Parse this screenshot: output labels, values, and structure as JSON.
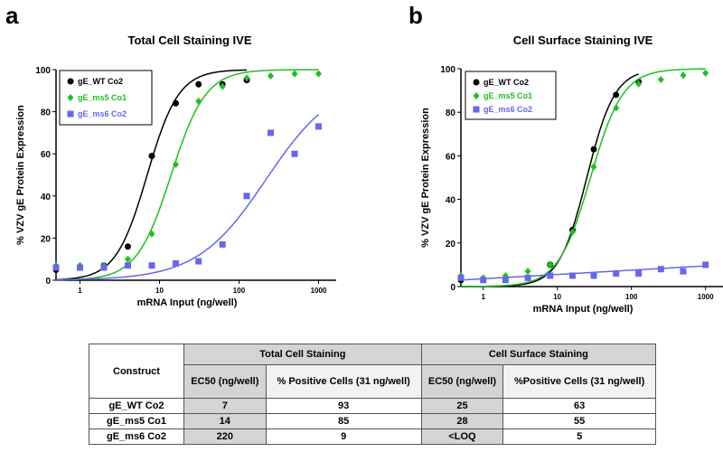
{
  "panels": {
    "a": "a",
    "b": "b"
  },
  "chart_data": [
    {
      "type": "scatter",
      "title": "Total Cell Staining IVE",
      "xlabel": "mRNA Input (ng/well)",
      "ylabel": "% VZV gE Protein Expression",
      "xscale": "log",
      "xlim": [
        0.5,
        1400
      ],
      "ylim": [
        0,
        100
      ],
      "xticks": [
        "1",
        "10",
        "100",
        "1000"
      ],
      "yticks": [
        "0",
        "20",
        "40",
        "60",
        "80",
        "100"
      ],
      "legend": "top-left",
      "series": [
        {
          "name": "gE_WT Co2",
          "color": "#000000",
          "marker": "circle",
          "x": [
            0.5,
            1,
            2,
            4,
            8,
            16,
            31,
            62,
            125
          ],
          "y": [
            5,
            6,
            7,
            16,
            59,
            84,
            93,
            93,
            95
          ],
          "fit": {
            "ec50": 7,
            "hill": 2.2,
            "top": 100,
            "bottom": 0,
            "xmax": 125
          }
        },
        {
          "name": "gE_ms5  Co1",
          "color": "#1fbf1f",
          "marker": "diamond",
          "x": [
            0.5,
            1,
            2,
            4,
            8,
            16,
            31,
            62,
            125,
            250,
            500,
            1000
          ],
          "y": [
            7,
            7,
            7,
            10,
            22,
            55,
            85,
            92,
            96,
            97,
            98,
            98
          ],
          "fit": {
            "ec50": 14,
            "hill": 2.0,
            "top": 100,
            "bottom": 0,
            "xmax": 1000
          }
        },
        {
          "name": "gE_ms6 Co2",
          "color": "#6666ee",
          "marker": "square",
          "x": [
            0.5,
            1,
            2,
            4,
            8,
            16,
            31,
            62,
            125,
            250,
            500,
            1000
          ],
          "y": [
            6,
            6,
            6,
            7,
            7,
            8,
            9,
            17,
            40,
            70,
            60,
            73
          ],
          "fit": {
            "ec50": 220,
            "hill": 1.0,
            "top": 96,
            "bottom": 0,
            "xmax": 1000
          }
        }
      ]
    },
    {
      "type": "scatter",
      "title": "Cell Surface Staining IVE",
      "xlabel": "mRNA Input (ng/well)",
      "ylabel": "% VZV gE Protein Expression",
      "xscale": "log",
      "xlim": [
        0.5,
        1400
      ],
      "ylim": [
        0,
        100
      ],
      "xticks": [
        "1",
        "10",
        "100",
        "1000"
      ],
      "yticks": [
        "0",
        "20",
        "40",
        "60",
        "80",
        "100"
      ],
      "legend": "top-left",
      "series": [
        {
          "name": "gE_WT Co2",
          "color": "#000000",
          "marker": "circle",
          "x": [
            0.5,
            8,
            16,
            31,
            62,
            125
          ],
          "y": [
            3,
            10,
            26,
            63,
            88,
            94
          ],
          "fit": {
            "ec50": 25,
            "hill": 2.3,
            "top": 100,
            "bottom": 0,
            "xmax": 125
          }
        },
        {
          "name": "gE_ms5  Co1",
          "color": "#1fbf1f",
          "marker": "diamond",
          "x": [
            0.5,
            1,
            2,
            4,
            8,
            16,
            31,
            62,
            125,
            250,
            500,
            1000
          ],
          "y": [
            5,
            4,
            5,
            7,
            10,
            25,
            55,
            82,
            93,
            95,
            97,
            98
          ],
          "fit": {
            "ec50": 28,
            "hill": 2.0,
            "top": 100,
            "bottom": 0,
            "xmax": 1000
          }
        },
        {
          "name": "gE_ms6 Co2",
          "color": "#6666ee",
          "marker": "square",
          "x": [
            0.5,
            1,
            2,
            4,
            8,
            16,
            31,
            62,
            125,
            250,
            500,
            1000
          ],
          "y": [
            4,
            3,
            3,
            4,
            5,
            5,
            5,
            6,
            6,
            8,
            7,
            10
          ],
          "fit": {
            "linear_log": [
              3,
              9.5
            ],
            "xmax": 1000
          }
        }
      ]
    }
  ],
  "table": {
    "construct": "Construct",
    "group1": "Total Cell Staining",
    "group2": "Cell Surface Staining",
    "cols": [
      "EC50 (ng/well)",
      "% Positive Cells (31 ng/well)",
      "EC50 (ng/well)",
      "%Positive Cells (31 ng/well)"
    ],
    "rows": [
      [
        "gE_WT Co2",
        "7",
        "93",
        "25",
        "63"
      ],
      [
        "gE_ms5 Co1",
        "14",
        "85",
        "28",
        "55"
      ],
      [
        "gE_ms6 Co2",
        "220",
        "9",
        "<LOQ",
        "5"
      ]
    ]
  }
}
